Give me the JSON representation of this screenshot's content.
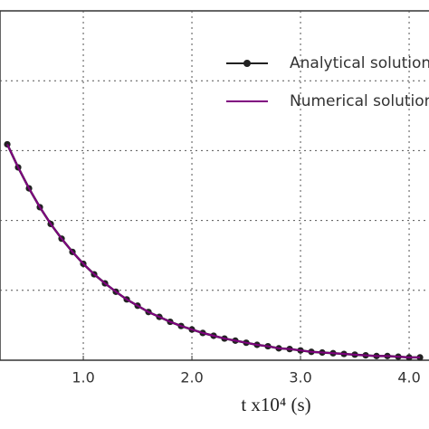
{
  "chart_data": {
    "type": "line",
    "x_label": "t x10⁴ (s)",
    "x": [
      0.3,
      0.4,
      0.5,
      0.6,
      0.7,
      0.8,
      0.9,
      1.0,
      1.1,
      1.2,
      1.3,
      1.4,
      1.5,
      1.6,
      1.7,
      1.8,
      1.9,
      2.0,
      2.1,
      2.2,
      2.3,
      2.4,
      2.5,
      2.6,
      2.7,
      2.8,
      2.9,
      3.0,
      3.1,
      3.2,
      3.3,
      3.4,
      3.5,
      3.6,
      3.7,
      3.8,
      3.9,
      4.0,
      4.1
    ],
    "series": [
      {
        "name": "Analytical solution",
        "color": "#222222",
        "marker": true,
        "values": [
          3.09,
          2.76,
          2.46,
          2.19,
          1.95,
          1.74,
          1.55,
          1.38,
          1.23,
          1.1,
          0.98,
          0.87,
          0.78,
          0.69,
          0.62,
          0.55,
          0.49,
          0.44,
          0.39,
          0.35,
          0.31,
          0.28,
          0.25,
          0.22,
          0.2,
          0.17,
          0.16,
          0.14,
          0.12,
          0.11,
          0.1,
          0.09,
          0.08,
          0.07,
          0.06,
          0.06,
          0.05,
          0.04,
          0.04
        ]
      },
      {
        "name": "Numerical solution",
        "color": "#800080",
        "marker": false,
        "values": [
          3.09,
          2.76,
          2.46,
          2.19,
          1.95,
          1.74,
          1.55,
          1.38,
          1.23,
          1.1,
          0.98,
          0.87,
          0.78,
          0.69,
          0.62,
          0.55,
          0.49,
          0.44,
          0.39,
          0.35,
          0.31,
          0.28,
          0.25,
          0.22,
          0.2,
          0.17,
          0.16,
          0.14,
          0.12,
          0.11,
          0.1,
          0.09,
          0.08,
          0.07,
          0.06,
          0.06,
          0.05,
          0.04,
          0.04
        ]
      }
    ],
    "xlim": [
      0.233,
      4.183
    ],
    "ylim": [
      0,
      5
    ],
    "xticks": [
      {
        "value": 1,
        "label": "1.0"
      },
      {
        "value": 2,
        "label": "2.0"
      },
      {
        "value": 3,
        "label": "3.0"
      },
      {
        "value": 4,
        "label": "4.0"
      }
    ],
    "yticks": [
      1,
      2,
      3,
      4
    ],
    "grid": true,
    "legend": "upper right"
  }
}
